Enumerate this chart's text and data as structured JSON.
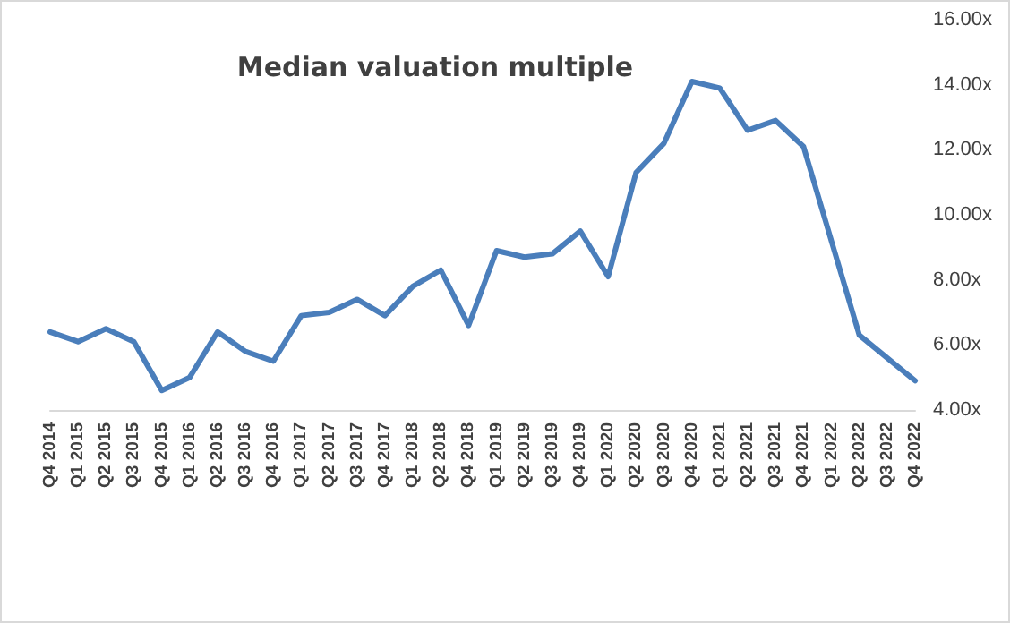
{
  "chart_data": {
    "type": "line",
    "title": "Median valuation multiple",
    "categories": [
      "Q4 2014",
      "Q1 2015",
      "Q2 2015",
      "Q3 2015",
      "Q4 2015",
      "Q1 2016",
      "Q2 2016",
      "Q3 2016",
      "Q4 2016",
      "Q1 2017",
      "Q2 2017",
      "Q3 2017",
      "Q4 2017",
      "Q1 2018",
      "Q2 2018",
      "Q4 2018",
      "Q1 2019",
      "Q2 2019",
      "Q3 2019",
      "Q4 2019",
      "Q1 2020",
      "Q2 2020",
      "Q3 2020",
      "Q4 2020",
      "Q1 2021",
      "Q2 2021",
      "Q3 2021",
      "Q4 2021",
      "Q1 2022",
      "Q2 2022",
      "Q3 2022",
      "Q4 2022"
    ],
    "series": [
      {
        "color": "#4a7ebb",
        "values": [
          6.4,
          6.1,
          6.5,
          6.1,
          4.6,
          5.0,
          6.4,
          5.8,
          5.5,
          6.9,
          7.0,
          7.4,
          6.9,
          7.8,
          8.3,
          6.6,
          8.9,
          8.7,
          8.8,
          9.5,
          8.1,
          11.3,
          12.2,
          14.1,
          13.9,
          12.6,
          12.9,
          12.1,
          9.2,
          6.3,
          5.6,
          4.9
        ]
      }
    ],
    "ylim": [
      4,
      16
    ],
    "yticks": [
      {
        "value": 4,
        "label": "4.00x"
      },
      {
        "value": 6,
        "label": "6.00x"
      },
      {
        "value": 8,
        "label": "8.00x"
      },
      {
        "value": 10,
        "label": "10.00x"
      },
      {
        "value": 12,
        "label": "12.00x"
      },
      {
        "value": 14,
        "label": "14.00x"
      },
      {
        "value": 16,
        "label": "16.00x"
      }
    ],
    "grid": false,
    "marker": "none",
    "line_style": "solid"
  }
}
